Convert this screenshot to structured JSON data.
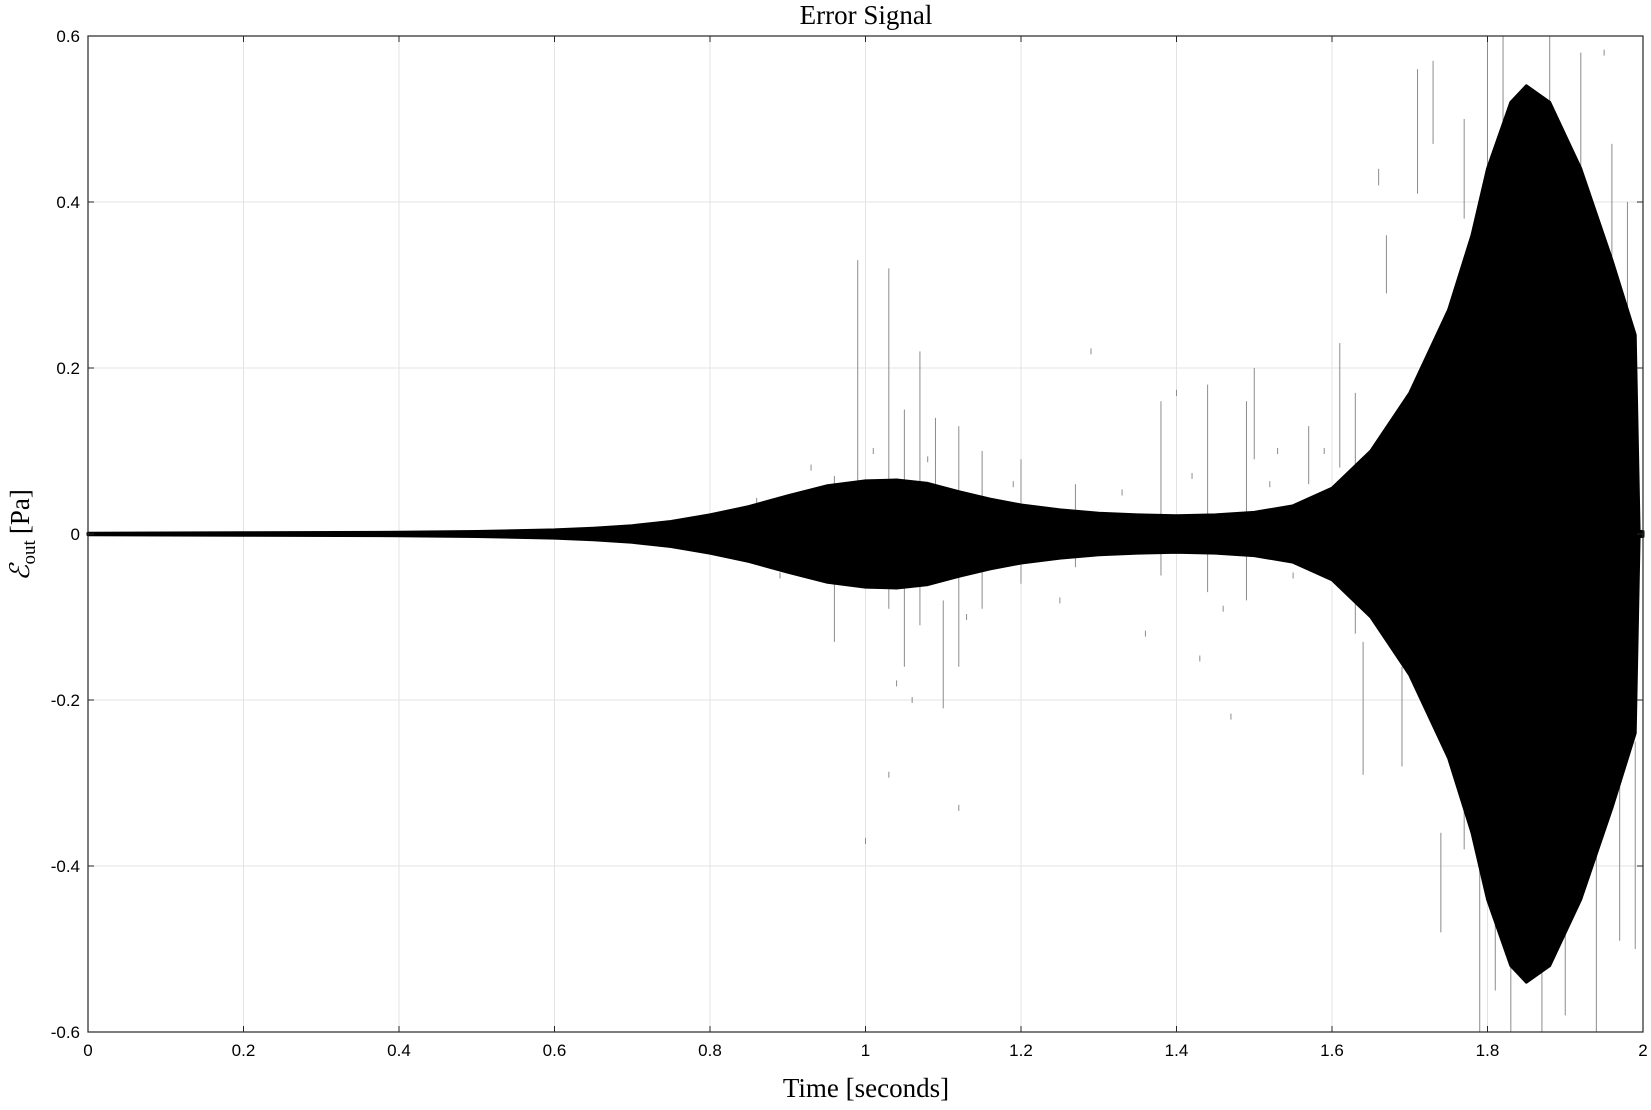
{
  "chart_data": {
    "type": "area",
    "title": "Error Signal",
    "xlabel": "Time [seconds]",
    "ylabel": {
      "symbol": "ℰ",
      "subscript": "out",
      "unit": "[Pa]"
    },
    "xlim": [
      0,
      2
    ],
    "ylim": [
      -0.6,
      0.6
    ],
    "x_ticks": [
      0,
      0.2,
      0.4,
      0.6,
      0.8,
      1,
      1.2,
      1.4,
      1.6,
      1.8,
      2
    ],
    "x_tick_labels": [
      "0",
      "0.2",
      "0.4",
      "0.6",
      "0.8",
      "1",
      "1.2",
      "1.4",
      "1.6",
      "1.8",
      "2"
    ],
    "y_ticks": [
      0.6,
      0.4,
      0.2,
      0,
      -0.2,
      -0.4,
      -0.6
    ],
    "y_tick_labels": [
      "0.6",
      "0.4",
      "0.2",
      "0",
      "-0.2",
      "-0.4",
      "-0.6"
    ],
    "grid": true,
    "colors": {
      "signal": "#000000",
      "spikes": "#8c8c8c",
      "grid": "#e3e3e3",
      "axis": "#262626"
    },
    "series": [
      {
        "envelope": {
          "x": [
            0,
            0.2,
            0.4,
            0.5,
            0.6,
            0.65,
            0.7,
            0.75,
            0.8,
            0.85,
            0.9,
            0.95,
            1.0,
            1.04,
            1.08,
            1.12,
            1.16,
            1.2,
            1.25,
            1.3,
            1.35,
            1.4,
            1.45,
            1.5,
            1.55,
            1.6,
            1.65,
            1.7,
            1.75,
            1.78,
            1.8,
            1.83,
            1.85,
            1.88,
            1.92,
            1.96,
            1.99,
            1.995,
            2.0
          ],
          "upper": [
            0.001,
            0.0015,
            0.002,
            0.003,
            0.005,
            0.007,
            0.01,
            0.015,
            0.023,
            0.033,
            0.046,
            0.058,
            0.064,
            0.065,
            0.061,
            0.051,
            0.042,
            0.035,
            0.029,
            0.025,
            0.023,
            0.022,
            0.023,
            0.026,
            0.034,
            0.055,
            0.1,
            0.17,
            0.27,
            0.36,
            0.44,
            0.52,
            0.54,
            0.52,
            0.44,
            0.33,
            0.24,
            0.003,
            0.003
          ],
          "lower": [
            -0.001,
            -0.0015,
            -0.002,
            -0.003,
            -0.005,
            -0.007,
            -0.01,
            -0.015,
            -0.023,
            -0.033,
            -0.046,
            -0.058,
            -0.064,
            -0.065,
            -0.061,
            -0.051,
            -0.042,
            -0.035,
            -0.029,
            -0.025,
            -0.023,
            -0.022,
            -0.023,
            -0.026,
            -0.034,
            -0.055,
            -0.1,
            -0.17,
            -0.27,
            -0.36,
            -0.44,
            -0.52,
            -0.54,
            -0.52,
            -0.44,
            -0.33,
            -0.24,
            -0.003,
            -0.003
          ]
        }
      }
    ],
    "spikes": [
      [
        0.96,
        -0.13,
        0.07
      ],
      [
        0.99,
        0.03,
        0.33
      ],
      [
        1.03,
        -0.09,
        0.32
      ],
      [
        1.05,
        -0.16,
        0.15
      ],
      [
        1.07,
        -0.11,
        0.22
      ],
      [
        1.09,
        0.03,
        0.14
      ],
      [
        1.1,
        -0.21,
        -0.08
      ],
      [
        1.12,
        -0.16,
        0.13
      ],
      [
        1.15,
        -0.09,
        0.1
      ],
      [
        1.2,
        -0.06,
        0.09
      ],
      [
        1.27,
        -0.04,
        0.06
      ],
      [
        1.38,
        -0.05,
        0.16
      ],
      [
        1.44,
        -0.07,
        0.18
      ],
      [
        1.49,
        -0.08,
        0.16
      ],
      [
        1.5,
        0.09,
        0.2
      ],
      [
        1.57,
        0.06,
        0.13
      ],
      [
        1.61,
        0.08,
        0.23
      ],
      [
        1.63,
        -0.12,
        0.17
      ],
      [
        1.64,
        -0.29,
        -0.13
      ],
      [
        1.66,
        0.42,
        0.44
      ],
      [
        1.67,
        0.29,
        0.36
      ],
      [
        1.69,
        -0.28,
        -0.16
      ],
      [
        1.71,
        0.41,
        0.56
      ],
      [
        1.71,
        -0.15,
        0.14
      ],
      [
        1.73,
        0.47,
        0.57
      ],
      [
        1.74,
        -0.48,
        -0.36
      ],
      [
        1.76,
        0.05,
        0.28
      ],
      [
        1.77,
        -0.38,
        -0.18
      ],
      [
        1.77,
        0.38,
        0.5
      ],
      [
        1.79,
        -0.6,
        -0.36
      ],
      [
        1.8,
        0.44,
        0.6
      ],
      [
        1.81,
        -0.55,
        -0.4
      ],
      [
        1.82,
        0.45,
        0.6
      ],
      [
        1.83,
        -0.6,
        -0.42
      ],
      [
        1.87,
        -0.6,
        -0.45
      ],
      [
        1.88,
        0.48,
        0.6
      ],
      [
        1.9,
        -0.58,
        -0.38
      ],
      [
        1.92,
        0.38,
        0.58
      ],
      [
        1.94,
        -0.6,
        -0.36
      ],
      [
        1.96,
        0.3,
        0.47
      ],
      [
        1.97,
        -0.49,
        -0.3
      ],
      [
        1.98,
        0.2,
        0.4
      ],
      [
        1.99,
        -0.5,
        -0.25
      ]
    ],
    "specks": [
      [
        0.86,
        0.04
      ],
      [
        0.89,
        -0.05
      ],
      [
        0.93,
        0.08
      ],
      [
        1.01,
        0.1
      ],
      [
        1.04,
        -0.18
      ],
      [
        1.08,
        0.09
      ],
      [
        1.13,
        -0.1
      ],
      [
        1.19,
        0.06
      ],
      [
        1.25,
        -0.08
      ],
      [
        1.33,
        0.05
      ],
      [
        1.36,
        -0.12
      ],
      [
        1.42,
        0.07
      ],
      [
        1.46,
        -0.09
      ],
      [
        1.52,
        0.06
      ],
      [
        1.55,
        -0.05
      ],
      [
        1.59,
        0.1
      ],
      [
        1.03,
        -0.29
      ],
      [
        1.0,
        -0.37
      ],
      [
        1.29,
        0.22
      ],
      [
        1.47,
        -0.22
      ],
      [
        1.53,
        0.1
      ],
      [
        1.4,
        0.17
      ],
      [
        1.95,
        0.58
      ],
      [
        1.12,
        -0.33
      ],
      [
        1.06,
        -0.2
      ],
      [
        1.43,
        -0.15
      ]
    ]
  }
}
